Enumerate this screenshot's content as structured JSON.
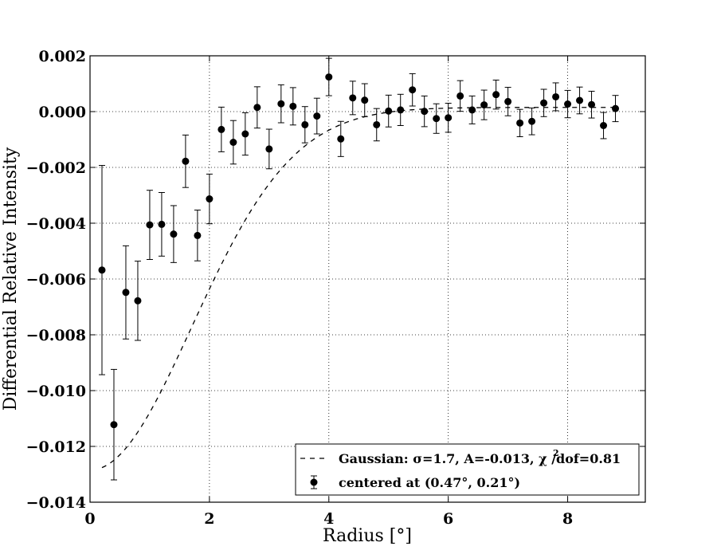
{
  "chart_data": {
    "type": "scatter",
    "xlabel": "Radius [°]",
    "ylabel": "Differential Relative Intensity",
    "xlim": [
      0,
      9.3
    ],
    "ylim": [
      -0.014,
      0.002
    ],
    "grid": true,
    "legend_position": "lower-right",
    "x_ticks": [
      0,
      2,
      4,
      6,
      8
    ],
    "x_tick_labels": [
      "0",
      "2",
      "4",
      "6",
      "8"
    ],
    "y_ticks": [
      0.002,
      0.0,
      -0.002,
      -0.004,
      -0.006,
      -0.008,
      -0.01,
      -0.012,
      -0.014
    ],
    "y_tick_labels": [
      "0.002",
      "0.000",
      "−0.002",
      "−0.004",
      "−0.006",
      "−0.008",
      "−0.010",
      "−0.012",
      "−0.014"
    ],
    "series": [
      {
        "name": "Gaussian: σ=1.7, A=-0.013, χ²/dof=0.81",
        "legend_text": "Gaussian: σ=1.7, A=-0.013, χ /dof=0.81",
        "legend_sup": "2",
        "kind": "line",
        "style": "dashed",
        "color": "#000000",
        "model": {
          "function": "gaussian",
          "sigma": 1.7,
          "amplitude": -0.013,
          "offset": 0.00015,
          "x_range": [
            0.2,
            8.8
          ]
        }
      },
      {
        "name": "centered at (0.47°, 0.21°)",
        "legend_text": "centered at (0.47°, 0.21°)",
        "kind": "points_with_errorbars",
        "color": "#000000",
        "points": [
          {
            "x": 0.2,
            "y": -0.00568,
            "err": 0.00375
          },
          {
            "x": 0.4,
            "y": -0.01122,
            "err": 0.00198
          },
          {
            "x": 0.6,
            "y": -0.00648,
            "err": 0.00167
          },
          {
            "x": 0.8,
            "y": -0.00678,
            "err": 0.00142
          },
          {
            "x": 1.0,
            "y": -0.00406,
            "err": 0.00124
          },
          {
            "x": 1.2,
            "y": -0.00404,
            "err": 0.00114
          },
          {
            "x": 1.4,
            "y": -0.00439,
            "err": 0.00102
          },
          {
            "x": 1.6,
            "y": -0.00178,
            "err": 0.00094
          },
          {
            "x": 1.8,
            "y": -0.00444,
            "err": 0.00091
          },
          {
            "x": 2.0,
            "y": -0.00313,
            "err": 0.00089
          },
          {
            "x": 2.2,
            "y": -0.00064,
            "err": 0.0008
          },
          {
            "x": 2.4,
            "y": -0.0011,
            "err": 0.00078
          },
          {
            "x": 2.6,
            "y": -0.0008,
            "err": 0.00076
          },
          {
            "x": 2.8,
            "y": 0.00015,
            "err": 0.00074
          },
          {
            "x": 3.0,
            "y": -0.00134,
            "err": 0.00071
          },
          {
            "x": 3.2,
            "y": 0.00028,
            "err": 0.00068
          },
          {
            "x": 3.4,
            "y": 0.00019,
            "err": 0.00067
          },
          {
            "x": 3.6,
            "y": -0.00047,
            "err": 0.00065
          },
          {
            "x": 3.8,
            "y": -0.00016,
            "err": 0.00064
          },
          {
            "x": 4.0,
            "y": 0.00124,
            "err": 0.00067
          },
          {
            "x": 4.2,
            "y": -0.00098,
            "err": 0.00063
          },
          {
            "x": 4.4,
            "y": 0.00049,
            "err": 0.0006
          },
          {
            "x": 4.6,
            "y": 0.00041,
            "err": 0.00059
          },
          {
            "x": 4.8,
            "y": -0.00047,
            "err": 0.00058
          },
          {
            "x": 5.0,
            "y": 2e-05,
            "err": 0.00057
          },
          {
            "x": 5.2,
            "y": 6e-05,
            "err": 0.00056
          },
          {
            "x": 5.4,
            "y": 0.00078,
            "err": 0.00058
          },
          {
            "x": 5.6,
            "y": 1e-05,
            "err": 0.00055
          },
          {
            "x": 5.8,
            "y": -0.00025,
            "err": 0.00053
          },
          {
            "x": 6.0,
            "y": -0.00022,
            "err": 0.00052
          },
          {
            "x": 6.2,
            "y": 0.00056,
            "err": 0.00055
          },
          {
            "x": 6.4,
            "y": 6e-05,
            "err": 0.0005
          },
          {
            "x": 6.6,
            "y": 0.00024,
            "err": 0.00053
          },
          {
            "x": 6.8,
            "y": 0.00061,
            "err": 0.00052
          },
          {
            "x": 7.0,
            "y": 0.00036,
            "err": 0.00051
          },
          {
            "x": 7.2,
            "y": -0.00041,
            "err": 0.00049
          },
          {
            "x": 7.4,
            "y": -0.00035,
            "err": 0.00048
          },
          {
            "x": 7.6,
            "y": 0.00031,
            "err": 0.00049
          },
          {
            "x": 7.8,
            "y": 0.00053,
            "err": 0.0005
          },
          {
            "x": 8.0,
            "y": 0.00027,
            "err": 0.00049
          },
          {
            "x": 8.2,
            "y": 0.0004,
            "err": 0.00048
          },
          {
            "x": 8.4,
            "y": 0.00025,
            "err": 0.00048
          },
          {
            "x": 8.6,
            "y": -0.0005,
            "err": 0.00047
          },
          {
            "x": 8.8,
            "y": 0.00011,
            "err": 0.00047
          }
        ]
      }
    ]
  }
}
